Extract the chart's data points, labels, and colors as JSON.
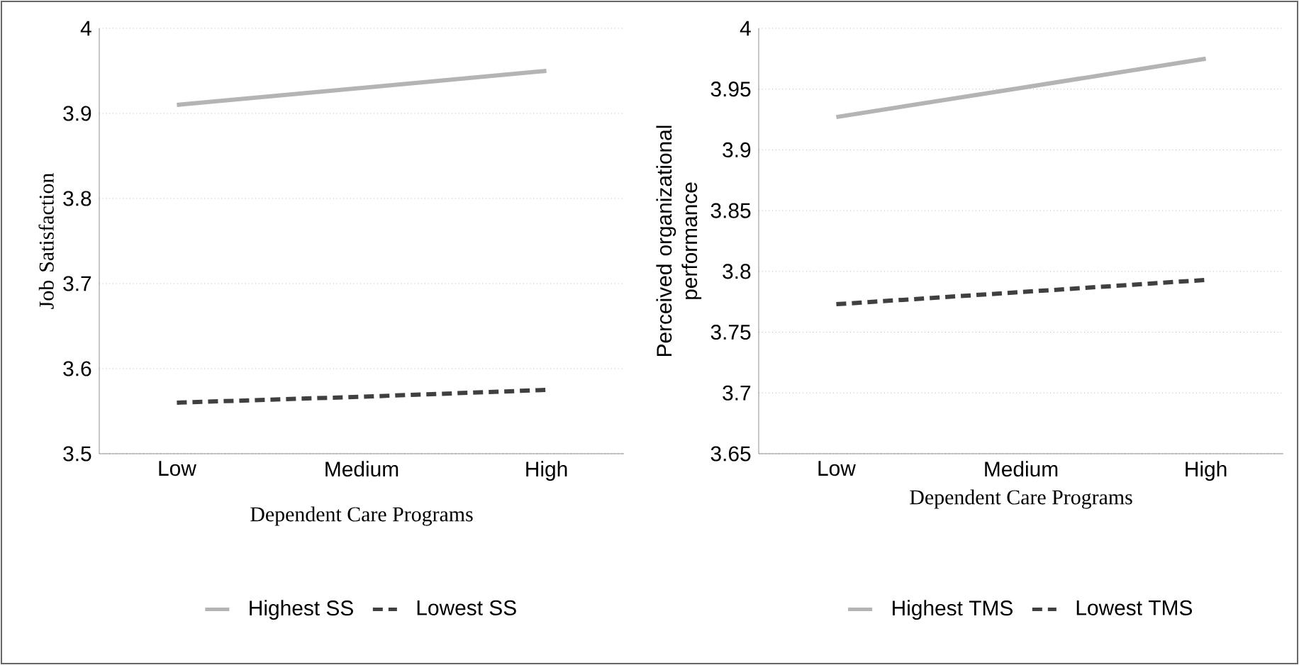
{
  "chart_data": [
    {
      "type": "line",
      "ylabel": "Job Satisfaction",
      "xlabel": "Dependent Care Programs",
      "categories": [
        "Low",
        "Medium",
        "High"
      ],
      "ylim": [
        3.5,
        4
      ],
      "yticks": [
        3.5,
        3.6,
        3.7,
        3.8,
        3.9,
        4
      ],
      "grid": "y",
      "legend": "bottom",
      "series": [
        {
          "name": "Highest SS",
          "color": "#b4b4b4",
          "line_style": "solid",
          "values": [
            3.91,
            3.93,
            3.95
          ]
        },
        {
          "name": "Lowest SS",
          "color": "#404040",
          "line_style": "dashed",
          "values": [
            3.56,
            3.567,
            3.575
          ]
        }
      ]
    },
    {
      "type": "line",
      "ylabel": "Perceived organizational performance",
      "xlabel": "Dependent Care Programs",
      "categories": [
        "Low",
        "Medium",
        "High"
      ],
      "ylim": [
        3.65,
        4
      ],
      "yticks": [
        3.65,
        3.7,
        3.75,
        3.8,
        3.85,
        3.9,
        3.95,
        4
      ],
      "grid": "y",
      "legend": "bottom",
      "series": [
        {
          "name": "Highest TMS",
          "color": "#b4b4b4",
          "line_style": "solid",
          "values": [
            3.927,
            3.951,
            3.975
          ]
        },
        {
          "name": "Lowest TMS",
          "color": "#404040",
          "line_style": "dashed",
          "values": [
            3.773,
            3.783,
            3.793
          ]
        }
      ]
    }
  ]
}
